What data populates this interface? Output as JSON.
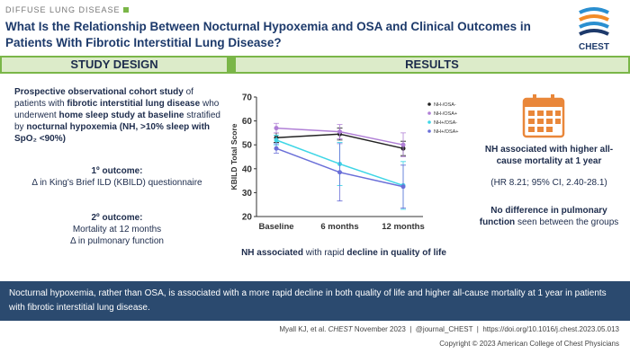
{
  "header": {
    "category": "DIFFUSE LUNG DISEASE",
    "title": "What Is the Relationship Between Nocturnal Hypoxemia and OSA and Clinical Outcomes in Patients With Fibrotic Interstitial Lung Disease?",
    "logo": "CHEST"
  },
  "study_design": {
    "heading": "STUDY DESIGN",
    "description": [
      "Prospective observational cohort study",
      " of patients with ",
      "fibrotic interstitial lung disease",
      " who underwent ",
      "home sleep study at baseline",
      " stratified by ",
      "nocturnal hypoxemia (NH, >10% sleep with SpO₂ <90%)"
    ],
    "primary": {
      "label": "1º outcome:",
      "text": "Δ in King's Brief ILD (KBILD) questionnaire"
    },
    "secondary": {
      "label": "2º outcome:",
      "lines": [
        "Mortality at 12 months",
        "Δ in pulmonary function"
      ]
    }
  },
  "results": {
    "heading": "RESULTS",
    "chart": {
      "type": "line",
      "y_label": "KBILD Total Score",
      "categories": [
        "Baseline",
        "6 months",
        "12 months"
      ],
      "ylim": [
        20,
        70
      ],
      "yticks": [
        20,
        30,
        40,
        50,
        60,
        70
      ],
      "series": [
        {
          "name": "NH-/OSA-",
          "color": "#222222",
          "values": [
            53,
            54.5,
            48.5
          ],
          "errors": [
            2,
            2.5,
            3
          ]
        },
        {
          "name": "NH-/OSA+",
          "color": "#b07fd6",
          "values": [
            57,
            55.5,
            50
          ],
          "errors": [
            2,
            3,
            5
          ]
        },
        {
          "name": "NH+/OSA-",
          "color": "#3fd6e6",
          "values": [
            52,
            42,
            33
          ],
          "errors": [
            2,
            9,
            10
          ]
        },
        {
          "name": "NH+/OSA+",
          "color": "#6a6fd8",
          "values": [
            48.5,
            38.5,
            32.5
          ],
          "errors": [
            2,
            12,
            9
          ]
        }
      ]
    },
    "caption": [
      "NH associated",
      " with rapid ",
      "decline in quality of life"
    ],
    "mortality": "NH associated with higher all-cause mortality at 1 year",
    "hazard": "(HR 8.21; 95% CI, 2.40-28.1)",
    "pulmonary": [
      "No difference in pulmonary function",
      " seen between the groups"
    ]
  },
  "conclusion": "Nocturnal hypoxemia, rather than OSA, is associated with a more rapid decline in both quality of life and higher all-cause mortality at 1 year in patients with fibrotic interstitial lung disease.",
  "footer": {
    "citation": [
      "Myall KJ, et al. ",
      "CHEST",
      " November 2023  |  @journal_CHEST  |  https://doi.org/10.1016/j.chest.2023.05.013"
    ],
    "copyright": "Copyright © 2023 American College of Chest Physicians"
  }
}
